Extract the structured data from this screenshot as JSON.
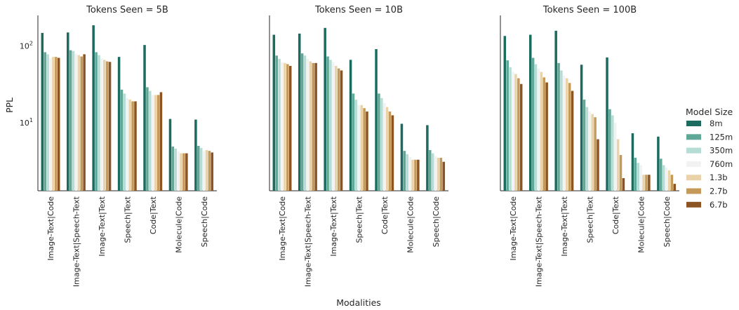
{
  "chart_data": {
    "type": "bar",
    "xlabel": "Modalities",
    "ylabel": "PPL",
    "yscale": "log",
    "ylim": [
      1.3,
      250
    ],
    "y_ticks": [
      {
        "value": 10,
        "base": "10",
        "exp": "1"
      },
      {
        "value": 100,
        "base": "10",
        "exp": "2"
      }
    ],
    "categories": [
      "Image-Text|Code",
      "Image-Text|Speech-Text",
      "Image-Text|Text",
      "Speech|Text",
      "Code|Text",
      "Molecule|Code",
      "Speech|Code"
    ],
    "legend": {
      "title": "Model Size",
      "position": "right",
      "entries": [
        {
          "name": "8m",
          "color": "#1b6b5f"
        },
        {
          "name": "125m",
          "color": "#5fa898"
        },
        {
          "name": "350m",
          "color": "#b5ddd5"
        },
        {
          "name": "760m",
          "color": "#f2f2f2"
        },
        {
          "name": "1.3b",
          "color": "#ead3a8"
        },
        {
          "name": "2.7b",
          "color": "#c49a5a"
        },
        {
          "name": "6.7b",
          "color": "#8c5422"
        }
      ]
    },
    "panels": [
      {
        "title": "Tokens Seen = 5B",
        "series": [
          {
            "name": "8m",
            "values": [
              148,
              150,
              186,
              72,
              103,
              11.2,
              11.0
            ]
          },
          {
            "name": "125m",
            "values": [
              83,
              88,
              83,
              27,
              29,
              4.9,
              5.0
            ]
          },
          {
            "name": "350m",
            "values": [
              78,
              86,
              76,
              24,
              26,
              4.6,
              4.7
            ]
          },
          {
            "name": "760m",
            "values": [
              69,
              79,
              69,
              21,
              23,
              4.2,
              4.3
            ]
          },
          {
            "name": "1.3b",
            "values": [
              72,
              76,
              66,
              20,
              23,
              4.0,
              4.4
            ]
          },
          {
            "name": "2.7b",
            "values": [
              72,
              73,
              63,
              19,
              23,
              4.0,
              4.3
            ]
          },
          {
            "name": "6.7b",
            "values": [
              70,
              78,
              62,
              19,
              25,
              4.0,
              4.1
            ]
          }
        ]
      },
      {
        "title": "Tokens Seen = 10B",
        "series": [
          {
            "name": "8m",
            "values": [
              140,
              145,
              172,
              66,
              91,
              9.7,
              9.3
            ]
          },
          {
            "name": "125m",
            "values": [
              75,
              80,
              73,
              24,
              24,
              4.3,
              4.4
            ]
          },
          {
            "name": "350m",
            "values": [
              68,
              75,
              66,
              20,
              21,
              3.9,
              4.0
            ]
          },
          {
            "name": "760m",
            "values": [
              61,
              68,
              61,
              17,
              18,
              3.6,
              3.7
            ]
          },
          {
            "name": "1.3b",
            "values": [
              60,
              63,
              55,
              17,
              16,
              3.3,
              3.5
            ]
          },
          {
            "name": "2.7b",
            "values": [
              58,
              60,
              51,
              15.5,
              14,
              3.3,
              3.5
            ]
          },
          {
            "name": "6.7b",
            "values": [
              55,
              60,
              48,
              14,
              12.5,
              3.3,
              3.1
            ]
          }
        ]
      },
      {
        "title": "Tokens Seen = 100B",
        "series": [
          {
            "name": "8m",
            "values": [
              135,
              140,
              158,
              57,
              71,
              7.3,
              6.6
            ]
          },
          {
            "name": "125m",
            "values": [
              65,
              70,
              60,
              20,
              15,
              3.5,
              3.4
            ]
          },
          {
            "name": "350m",
            "values": [
              53,
              58,
              48,
              16,
              12.5,
              3.0,
              2.8
            ]
          },
          {
            "name": "760m",
            "values": [
              46,
              51,
              41,
              14,
              10,
              2.8,
              2.6
            ]
          },
          {
            "name": "1.3b",
            "values": [
              43,
              46,
              38,
              13,
              6.1,
              2.1,
              2.4
            ]
          },
          {
            "name": "2.7b",
            "values": [
              38,
              39,
              33,
              11.8,
              3.8,
              2.1,
              2.1
            ]
          },
          {
            "name": "6.7b",
            "values": [
              32,
              33.5,
              26,
              6.1,
              1.9,
              2.1,
              1.6
            ]
          }
        ]
      }
    ]
  }
}
